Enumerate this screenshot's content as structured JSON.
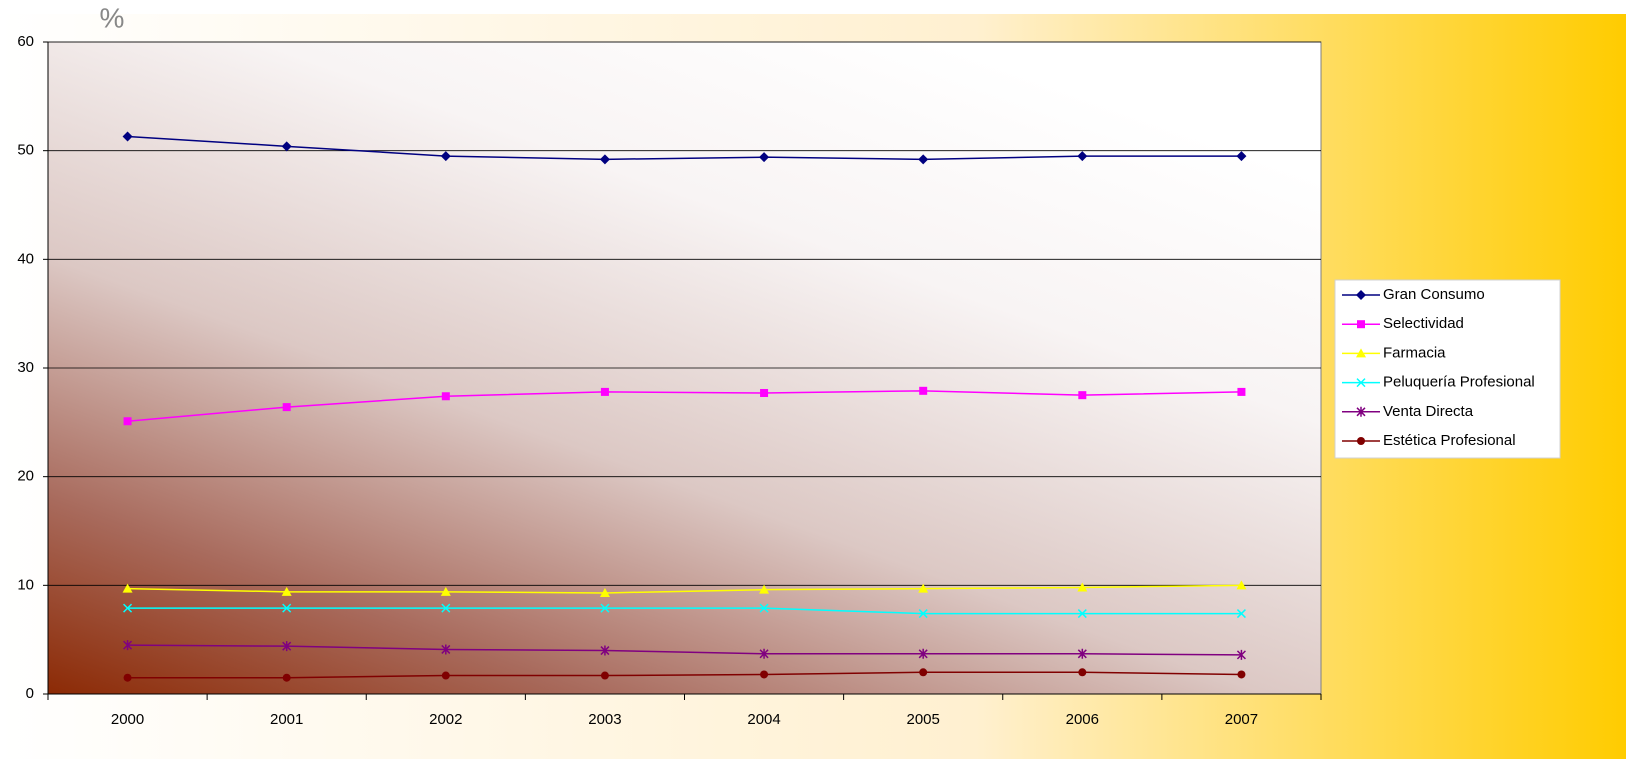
{
  "chart_data": {
    "type": "line",
    "title": "%",
    "categories": [
      "2000",
      "2001",
      "2002",
      "2003",
      "2004",
      "2005",
      "2006",
      "2007"
    ],
    "ylim": [
      0,
      60
    ],
    "yticks": [
      0,
      10,
      20,
      30,
      40,
      50,
      60
    ],
    "grid": true,
    "legend": "right",
    "series": [
      {
        "name": "Gran Consumo",
        "color": "#000080",
        "marker": "diamond",
        "values": [
          51.3,
          50.4,
          49.5,
          49.2,
          49.4,
          49.2,
          49.5,
          49.5
        ]
      },
      {
        "name": "Selectividad",
        "color": "#ff00ff",
        "marker": "square",
        "values": [
          25.1,
          26.4,
          27.4,
          27.8,
          27.7,
          27.9,
          27.5,
          27.8
        ]
      },
      {
        "name": "Farmacia",
        "color": "#ffff00",
        "marker": "triangle",
        "values": [
          9.7,
          9.4,
          9.4,
          9.3,
          9.6,
          9.7,
          9.8,
          10.0
        ]
      },
      {
        "name": "Peluquería Profesional",
        "color": "#00ffff",
        "marker": "x",
        "values": [
          7.9,
          7.9,
          7.9,
          7.9,
          7.9,
          7.4,
          7.4,
          7.4
        ]
      },
      {
        "name": "Venta Directa",
        "color": "#800080",
        "marker": "star",
        "values": [
          4.5,
          4.4,
          4.1,
          4.0,
          3.7,
          3.7,
          3.7,
          3.6
        ]
      },
      {
        "name": "Estética Profesional",
        "color": "#800000",
        "marker": "circle",
        "values": [
          1.5,
          1.5,
          1.7,
          1.7,
          1.8,
          2.0,
          2.0,
          1.8
        ]
      }
    ]
  }
}
